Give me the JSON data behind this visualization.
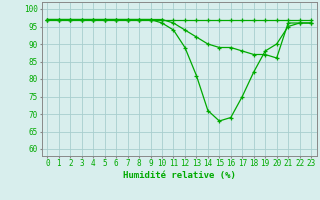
{
  "x": [
    0,
    1,
    2,
    3,
    4,
    5,
    6,
    7,
    8,
    9,
    10,
    11,
    12,
    13,
    14,
    15,
    16,
    17,
    18,
    19,
    20,
    21,
    22,
    23
  ],
  "line1": [
    97,
    97,
    97,
    97,
    97,
    97,
    97,
    97,
    97,
    97,
    97,
    97,
    97,
    97,
    97,
    97,
    97,
    97,
    97,
    97,
    97,
    97,
    97,
    97
  ],
  "line2": [
    97,
    97,
    97,
    97,
    97,
    97,
    97,
    97,
    97,
    97,
    96,
    94,
    89,
    81,
    71,
    68,
    69,
    75,
    82,
    88,
    90,
    95,
    96,
    96
  ],
  "line3": [
    97,
    97,
    97,
    97,
    97,
    97,
    97,
    97,
    97,
    97,
    97,
    96,
    94,
    92,
    90,
    89,
    89,
    88,
    87,
    87,
    86,
    96,
    96,
    96
  ],
  "bg_color": "#d8eeed",
  "grid_color": "#a8cece",
  "line_color": "#00aa00",
  "xlabel": "Humidité relative (%)",
  "ylim": [
    58,
    102
  ],
  "xlim": [
    -0.5,
    23.5
  ],
  "yticks": [
    60,
    65,
    70,
    75,
    80,
    85,
    90,
    95,
    100
  ],
  "xticks": [
    0,
    1,
    2,
    3,
    4,
    5,
    6,
    7,
    8,
    9,
    10,
    11,
    12,
    13,
    14,
    15,
    16,
    17,
    18,
    19,
    20,
    21,
    22,
    23
  ]
}
